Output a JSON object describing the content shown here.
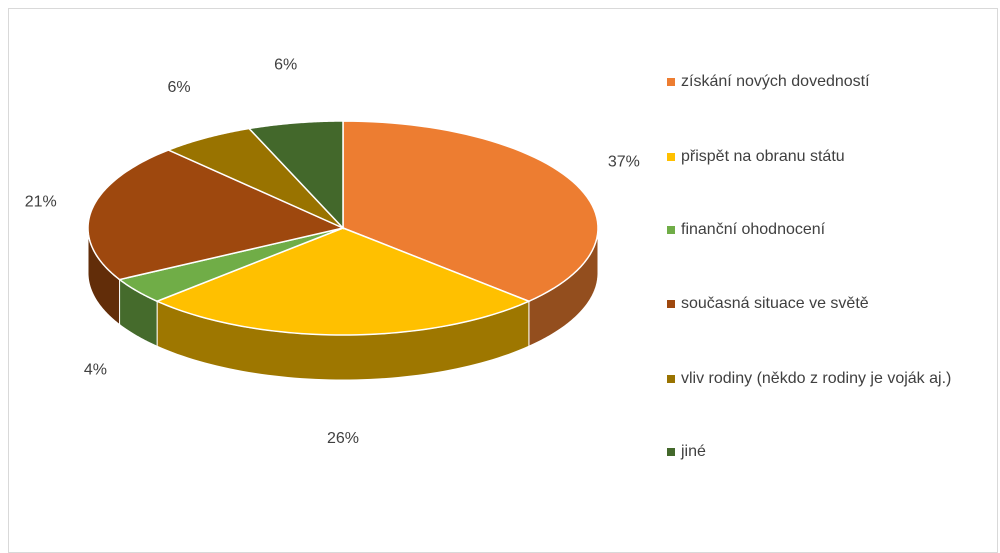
{
  "chart_data": {
    "type": "pie",
    "categories": [
      "získání nových dovedností",
      "přispět na obranu státu",
      "finanční ohodnocení",
      "současná situace ve světě",
      "vliv rodiny (někdo z rodiny je voják aj.)",
      "jiné"
    ],
    "values": [
      37,
      26,
      4,
      21,
      6,
      6
    ],
    "value_labels": [
      "37%",
      "26%",
      "4%",
      "21%",
      "6%",
      "6%"
    ],
    "colors": [
      "#ED7D31",
      "#FFC000",
      "#70AD47",
      "#9E480E",
      "#997300",
      "#43682B"
    ]
  }
}
